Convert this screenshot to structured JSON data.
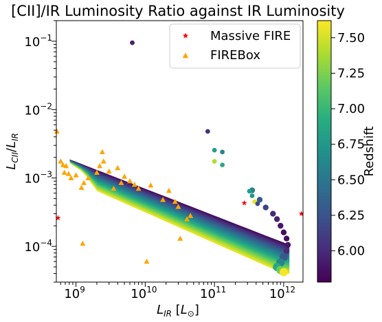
{
  "chart_data": {
    "type": "scatter",
    "title": "[CII]/IR Luminosity Ratio against IR Luminosity",
    "xlabel": "L_IR [L_⊙]",
    "ylabel": "L_CII/L_IR",
    "xscale": "log",
    "yscale": "log",
    "xlim": [
      520000000.0,
      1900000000000.0
    ],
    "ylim": [
      3e-05,
      0.2
    ],
    "x_ticks": [
      {
        "value": 1000000000.0,
        "base": "10",
        "exp": "9"
      },
      {
        "value": 10000000000.0,
        "base": "10",
        "exp": "10"
      },
      {
        "value": 100000000000.0,
        "base": "10",
        "exp": "11"
      },
      {
        "value": 1000000000000.0,
        "base": "10",
        "exp": "12"
      }
    ],
    "y_ticks": [
      {
        "value": 0.0001,
        "base": "10",
        "exp": "−4"
      },
      {
        "value": 0.001,
        "base": "10",
        "exp": "−3"
      },
      {
        "value": 0.01,
        "base": "10",
        "exp": "−2"
      },
      {
        "value": 0.1,
        "base": "10",
        "exp": "−1"
      }
    ],
    "legend_position": "top-right",
    "legend": [
      {
        "label": "Massive FIRE",
        "marker": "star",
        "color": "#ff0000"
      },
      {
        "label": "FIREBox",
        "marker": "triangle",
        "color": "#ffa500"
      }
    ],
    "colorbar": {
      "label": "Redshift",
      "min": 5.78,
      "max": 7.62,
      "ticks": [
        "6.00",
        "6.25",
        "6.50",
        "6.75",
        "7.00",
        "7.25",
        "7.50"
      ],
      "colormap": "viridis"
    },
    "series": [
      {
        "name": "Massive FIRE",
        "marker": "star",
        "color": "#ff0000",
        "points": [
          [
            550000000.0,
            0.00026
          ],
          [
            270000000000.0,
            0.00043
          ],
          [
            1800000000000.0,
            0.0003
          ]
        ]
      },
      {
        "name": "FIREBox",
        "marker": "triangle",
        "color": "#ffa500",
        "points": [
          [
            530000000.0,
            0.0048
          ],
          [
            600000000.0,
            0.00175
          ],
          [
            650000000.0,
            0.00155
          ],
          [
            680000000.0,
            0.0012
          ],
          [
            720000000.0,
            0.0015
          ],
          [
            780000000.0,
            0.00115
          ],
          [
            850000000.0,
            0.001
          ],
          [
            1000000000.0,
            0.0011
          ],
          [
            1200000000.0,
            0.00072
          ],
          [
            1250000000.0,
            0.00011
          ],
          [
            1300000000.0,
            0.00085
          ],
          [
            1500000000.0,
            0.001
          ],
          [
            2000000000.0,
            0.0012
          ],
          [
            2200000000.0,
            0.0015
          ],
          [
            2400000000.0,
            0.0024
          ],
          [
            2500000000.0,
            0.00175
          ],
          [
            3000000000.0,
            0.00125
          ],
          [
            3500000000.0,
            0.0007
          ],
          [
            4000000000.0,
            0.0014
          ],
          [
            4500000000.0,
            0.00085
          ],
          [
            5000000000.0,
            0.00105
          ],
          [
            6000000000.0,
            0.0009
          ],
          [
            7000000000.0,
            0.0008
          ],
          [
            8000000000.0,
            0.0007
          ],
          [
            10500000000.0,
            6e-05
          ],
          [
            12000000000.0,
            0.00078
          ],
          [
            18000000000.0,
            0.00048
          ],
          [
            22000000000.0,
            0.00065
          ],
          [
            27000000000.0,
            0.00045
          ],
          [
            30000000000.0,
            0.00038
          ],
          [
            32000000000.0,
            0.00013
          ],
          [
            40000000000.0,
            0.00025
          ],
          [
            45000000000.0,
            0.00028
          ]
        ]
      }
    ],
    "special_points": [
      {
        "x": 6500000000.0,
        "y": 0.095,
        "z": 5.95
      },
      {
        "x": 80000000000.0,
        "y": 0.0048,
        "z": 6.05
      },
      {
        "x": 100000000000.0,
        "y": 0.00255,
        "z": 6.8
      },
      {
        "x": 130000000000.0,
        "y": 0.0024,
        "z": 6.6
      },
      {
        "x": 100000000000.0,
        "y": 0.00175,
        "z": 7.4
      },
      {
        "x": 130000000000.0,
        "y": 0.00155,
        "z": 6.9
      },
      {
        "x": 320000000000.0,
        "y": 0.00064,
        "z": 6.8
      },
      {
        "x": 350000000000.0,
        "y": 0.00055,
        "z": 6.75
      },
      {
        "x": 380000000000.0,
        "y": 0.00045,
        "z": 7.55
      },
      {
        "x": 420000000000.0,
        "y": 0.00042,
        "z": 6.2
      }
    ],
    "trajectories": [
      {
        "name": "galaxy-tail",
        "points": [
          {
            "x": 350000000000.0,
            "y": 0.00066,
            "z": 6.6
          },
          {
            "x": 450000000000.0,
            "y": 0.00048,
            "z": 6.3
          },
          {
            "x": 550000000000.0,
            "y": 0.00037,
            "z": 6.15
          },
          {
            "x": 700000000000.0,
            "y": 0.0003,
            "z": 6.0
          },
          {
            "x": 800000000000.0,
            "y": 0.00025,
            "z": 5.95
          },
          {
            "x": 900000000000.0,
            "y": 0.0002,
            "z": 5.9
          },
          {
            "x": 1000000000000.0,
            "y": 0.00016,
            "z": 5.85
          },
          {
            "x": 1100000000000.0,
            "y": 0.00013,
            "z": 5.85
          },
          {
            "x": 1150000000000.0,
            "y": 0.000105,
            "z": 5.9
          },
          {
            "x": 1100000000000.0,
            "y": 8.5e-05,
            "z": 6.0
          },
          {
            "x": 1000000000000.0,
            "y": 7e-05,
            "z": 6.3
          },
          {
            "x": 900000000000.0,
            "y": 5.8e-05,
            "z": 6.6
          },
          {
            "x": 800000000000.0,
            "y": 5e-05,
            "z": 6.9
          },
          {
            "x": 900000000000.0,
            "y": 4.5e-05,
            "z": 7.2
          },
          {
            "x": 1000000000000.0,
            "y": 4.2e-05,
            "z": 7.6
          }
        ]
      }
    ],
    "band": {
      "description_upper_edge": [
        [
          820000000.0,
          0.00185
        ],
        [
          1200000000000.0,
          0.000105
        ]
      ],
      "lower_edge_start": [
        [
          820000000.0,
          0.00165
        ],
        [
          1300000000.0,
          0.0012
        ],
        [
          2000000000.0,
          0.00065
        ]
      ],
      "lower_edge_end": [
        [
          2000000000.0,
          0.00065
        ],
        [
          1000000000000.0,
          4e-05
        ]
      ],
      "z_range": [
        5.8,
        7.6
      ]
    }
  }
}
